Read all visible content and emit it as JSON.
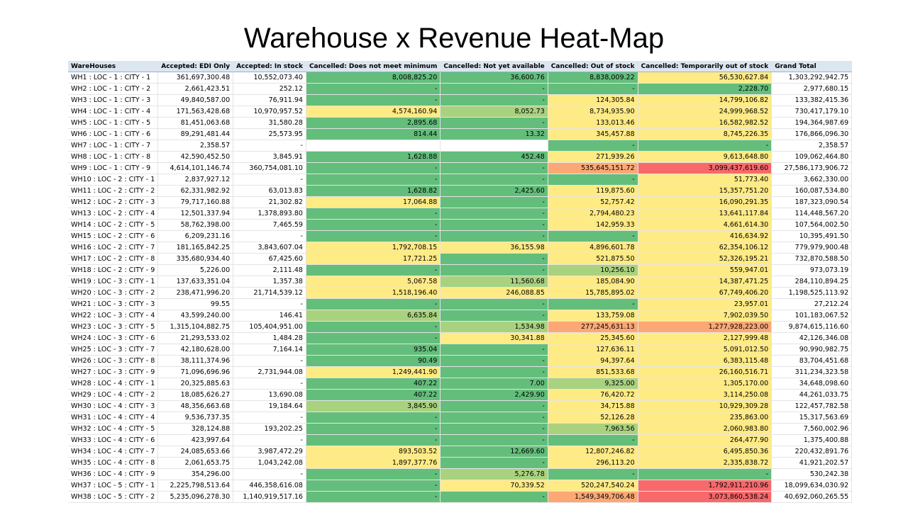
{
  "title": "Warehouse x Revenue Heat-Map",
  "colors": {
    "header_bg": "#dce6f1",
    "low": "#63be7b",
    "mid": "#ffeb84",
    "high": "#f8696b"
  },
  "chart_data": {
    "type": "heatmap",
    "columns": [
      "WareHouses",
      "Accepted: EDI Only",
      "Accepted: In stock",
      "Cancelled: Does not meet minimum",
      "Cancelled: Not yet available",
      "Cancelled: Out of stock",
      "Cancelled: Temporarily out of stock",
      "Grand Total"
    ],
    "rows": [
      [
        "WH1 : LOC - 1 : CITY - 1",
        "361,697,300.48",
        "10,552,073.40",
        "8,008,825.20",
        "36,600.76",
        "8,838,009.22",
        "56,530,627.84",
        "1,303,292,942.75"
      ],
      [
        "WH2 : LOC - 1 : CITY - 2",
        "2,661,423.51",
        "252.12",
        "-",
        "-",
        "-",
        "2,228.70",
        "2,977,680.15"
      ],
      [
        "WH3 : LOC - 1 : CITY - 3",
        "49,840,587.00",
        "76,911.94",
        "-",
        "-",
        "124,305.84",
        "14,799,106.82",
        "133,382,415.36"
      ],
      [
        "WH4 : LOC - 1 : CITY - 4",
        "171,563,428.68",
        "10,970,957.52",
        "4,574,160.94",
        "8,052.73",
        "8,734,935.90",
        "24,999,968.52",
        "730,417,179.10"
      ],
      [
        "WH5 : LOC - 1 : CITY - 5",
        "81,451,063.68",
        "31,580.28",
        "2,895.68",
        "-",
        "133,013.46",
        "16,582,982.52",
        "194,364,987.69"
      ],
      [
        "WH6 : LOC - 1 : CITY - 6",
        "89,291,481.44",
        "25,573.95",
        "814.44",
        "13.32",
        "345,457.88",
        "8,745,226.35",
        "176,866,096.30"
      ],
      [
        "WH7 : LOC - 1 : CITY - 7",
        "2,358.57",
        "-",
        "",
        "",
        "-",
        "-",
        "2,358.57"
      ],
      [
        "WH8 : LOC - 1 : CITY - 8",
        "42,590,452.50",
        "3,845.91",
        "1,628.88",
        "452.48",
        "271,939.26",
        "9,613,648.80",
        "109,062,464.80"
      ],
      [
        "WH9 : LOC - 1 : CITY - 9",
        "4,614,101,146.74",
        "360,754,081.10",
        "-",
        "-",
        "535,645,151.72",
        "3,099,437,619.60",
        "27,586,173,906.72"
      ],
      [
        "WH10 : LOC - 2 : CITY - 1",
        "2,837,927.12",
        "-",
        "-",
        "-",
        "-",
        "51,773.40",
        "3,662,330.00"
      ],
      [
        "WH11 : LOC - 2 : CITY - 2",
        "62,331,982.92",
        "63,013.83",
        "1,628.82",
        "2,425.60",
        "119,875.60",
        "15,357,751.20",
        "160,087,534.80"
      ],
      [
        "WH12 : LOC - 2 : CITY - 3",
        "79,717,160.88",
        "21,302.82",
        "17,064.88",
        "-",
        "52,757.42",
        "16,090,291.35",
        "187,323,090.54"
      ],
      [
        "WH13 : LOC - 2 : CITY - 4",
        "12,501,337.94",
        "1,378,893.80",
        "-",
        "-",
        "2,794,480.23",
        "13,641,117.84",
        "114,448,567.20"
      ],
      [
        "WH14 : LOC - 2 : CITY - 5",
        "58,762,398.00",
        "7,465.59",
        "-",
        "-",
        "142,959.33",
        "4,661,614.30",
        "107,564,002.50"
      ],
      [
        "WH15 : LOC - 2 : CITY - 6",
        "6,209,231.16",
        "-",
        "-",
        "-",
        "-",
        "416,634.92",
        "10,395,491.50"
      ],
      [
        "WH16 : LOC - 2 : CITY - 7",
        "181,165,842.25",
        "3,843,607.04",
        "1,792,708.15",
        "36,155.98",
        "4,896,601.78",
        "62,354,106.12",
        "779,979,900.48"
      ],
      [
        "WH17 : LOC - 2 : CITY - 8",
        "335,680,934.40",
        "67,425.60",
        "17,721.25",
        "-",
        "521,875.50",
        "52,326,195.21",
        "732,870,588.50"
      ],
      [
        "WH18 : LOC - 2 : CITY - 9",
        "5,226.00",
        "2,111.48",
        "-",
        "-",
        "10,256.10",
        "559,947.01",
        "973,073.19"
      ],
      [
        "WH19 : LOC - 3 : CITY - 1",
        "137,633,351.04",
        "1,357.38",
        "5,067.58",
        "11,560.68",
        "185,084.90",
        "14,387,471.25",
        "284,110,894.25"
      ],
      [
        "WH20 : LOC - 3 : CITY - 2",
        "238,471,996.20",
        "21,714,539.12",
        "1,518,196.40",
        "246,088.85",
        "15,785,895.02",
        "67,749,406.20",
        "1,198,525,113.92"
      ],
      [
        "WH21 : LOC - 3 : CITY - 3",
        "99.55",
        "-",
        "-",
        "-",
        "-",
        "23,957.01",
        "27,212.24"
      ],
      [
        "WH22 : LOC - 3 : CITY - 4",
        "43,599,240.00",
        "146.41",
        "6,635.84",
        "-",
        "133,759.08",
        "7,902,039.50",
        "101,183,067.52"
      ],
      [
        "WH23 : LOC - 3 : CITY - 5",
        "1,315,104,882.75",
        "105,404,951.00",
        "-",
        "1,534.98",
        "277,245,631.13",
        "1,277,928,223.00",
        "9,874,615,116.60"
      ],
      [
        "WH24 : LOC - 3 : CITY - 6",
        "21,293,533.02",
        "1,484.28",
        "-",
        "30,341.88",
        "25,345.60",
        "2,127,999.48",
        "42,126,346.08"
      ],
      [
        "WH25 : LOC - 3 : CITY - 7",
        "42,180,628.00",
        "7,164.14",
        "935.04",
        "-",
        "127,636.11",
        "5,091,012.50",
        "90,990,982.75"
      ],
      [
        "WH26 : LOC - 3 : CITY - 8",
        "38,111,374.96",
        "-",
        "90.49",
        "-",
        "94,397.64",
        "6,383,115.48",
        "83,704,451.68"
      ],
      [
        "WH27 : LOC - 3 : CITY - 9",
        "71,096,696.96",
        "2,731,944.08",
        "1,249,441.90",
        "-",
        "851,533.68",
        "26,160,516.71",
        "311,234,323.58"
      ],
      [
        "WH28 : LOC - 4 : CITY - 1",
        "20,325,885.63",
        "-",
        "407.22",
        "7.00",
        "9,325.00",
        "1,305,170.00",
        "34,648,098.60"
      ],
      [
        "WH29 : LOC - 4 : CITY - 2",
        "18,085,626.27",
        "13,690.08",
        "407.22",
        "2,429.90",
        "76,420.72",
        "3,114,250.08",
        "44,261,033.75"
      ],
      [
        "WH30 : LOC - 4 : CITY - 3",
        "48,356,663.68",
        "19,184.64",
        "3,845.90",
        "-",
        "34,715.88",
        "10,929,309.28",
        "122,457,782.58"
      ],
      [
        "WH31 : LOC - 4 : CITY - 4",
        "9,536,737.35",
        "-",
        "-",
        "-",
        "52,126.28",
        "235,863.00",
        "15,317,563.69"
      ],
      [
        "WH32 : LOC - 4 : CITY - 5",
        "328,124.88",
        "193,202.25",
        "-",
        "-",
        "7,963.56",
        "2,060,983.80",
        "7,560,002.96"
      ],
      [
        "WH33 : LOC - 4 : CITY - 6",
        "423,997.64",
        "-",
        "-",
        "-",
        "-",
        "264,477.90",
        "1,375,400.88"
      ],
      [
        "WH34 : LOC - 4 : CITY - 7",
        "24,085,653.66",
        "3,987,472.29",
        "893,503.52",
        "12,669.60",
        "12,807,246.82",
        "6,495,850.36",
        "220,432,891.76"
      ],
      [
        "WH35 : LOC - 4 : CITY - 8",
        "2,061,653.75",
        "1,043,242.08",
        "1,897,377.76",
        "-",
        "296,113.20",
        "2,335,838.72",
        "41,921,202.57"
      ],
      [
        "WH36 : LOC - 4 : CITY - 9",
        "354,296.00",
        "-",
        "-",
        "5,276.78",
        "-",
        "-",
        "530,242.38"
      ],
      [
        "WH37 : LOC - 5 : CITY - 1",
        "2,225,798,513.64",
        "446,358,616.08",
        "-",
        "70,339.52",
        "520,247,540.24",
        "1,792,911,210.96",
        "18,099,634,030.92"
      ],
      [
        "WH38 : LOC - 5 : CITY - 2",
        "5,235,096,278.30",
        "1,140,919,517.16",
        "-",
        "-",
        "1,549,349,706.48",
        "3,073,860,538.24",
        "40,692,060,265.55"
      ]
    ],
    "cell_colors": [
      [
        "g",
        "g",
        "g",
        "y",
        "y"
      ],
      [
        "g",
        "g",
        "g",
        "g",
        "g"
      ],
      [
        "g",
        "g",
        "y",
        "y",
        "y"
      ],
      [
        "y",
        "l",
        "y",
        "y",
        "y"
      ],
      [
        "g",
        "g",
        "y",
        "y",
        "y"
      ],
      [
        "g",
        "g",
        "y",
        "y",
        "y"
      ],
      [
        "w",
        "w",
        "g",
        "g",
        "w"
      ],
      [
        "g",
        "g",
        "y",
        "y",
        "y"
      ],
      [
        "g",
        "g",
        "o",
        "r",
        "y"
      ],
      [
        "g",
        "g",
        "g",
        "y",
        "y"
      ],
      [
        "g",
        "g",
        "y",
        "y",
        "y"
      ],
      [
        "y",
        "g",
        "y",
        "y",
        "y"
      ],
      [
        "g",
        "g",
        "y",
        "y",
        "y"
      ],
      [
        "g",
        "g",
        "y",
        "y",
        "y"
      ],
      [
        "g",
        "g",
        "g",
        "y",
        "y"
      ],
      [
        "y",
        "y",
        "y",
        "y",
        "y"
      ],
      [
        "y",
        "g",
        "y",
        "y",
        "y"
      ],
      [
        "g",
        "g",
        "l",
        "y",
        "y"
      ],
      [
        "y",
        "l",
        "y",
        "y",
        "y"
      ],
      [
        "y",
        "y",
        "y",
        "y",
        "y"
      ],
      [
        "g",
        "g",
        "g",
        "y",
        "y"
      ],
      [
        "l",
        "g",
        "y",
        "y",
        "y"
      ],
      [
        "g",
        "l",
        "o",
        "o",
        "y"
      ],
      [
        "g",
        "y",
        "y",
        "y",
        "y"
      ],
      [
        "g",
        "g",
        "y",
        "y",
        "y"
      ],
      [
        "g",
        "g",
        "y",
        "y",
        "y"
      ],
      [
        "y",
        "g",
        "y",
        "y",
        "y"
      ],
      [
        "g",
        "g",
        "l",
        "y",
        "y"
      ],
      [
        "g",
        "g",
        "y",
        "y",
        "y"
      ],
      [
        "l",
        "g",
        "y",
        "y",
        "y"
      ],
      [
        "g",
        "g",
        "y",
        "y",
        "y"
      ],
      [
        "g",
        "g",
        "l",
        "y",
        "y"
      ],
      [
        "g",
        "g",
        "g",
        "y",
        "y"
      ],
      [
        "y",
        "g",
        "y",
        "y",
        "y"
      ],
      [
        "y",
        "g",
        "y",
        "y",
        "y"
      ],
      [
        "g",
        "l",
        "g",
        "g",
        "y"
      ],
      [
        "g",
        "y",
        "y",
        "r",
        "y"
      ],
      [
        "g",
        "g",
        "o",
        "r",
        "y"
      ]
    ]
  }
}
